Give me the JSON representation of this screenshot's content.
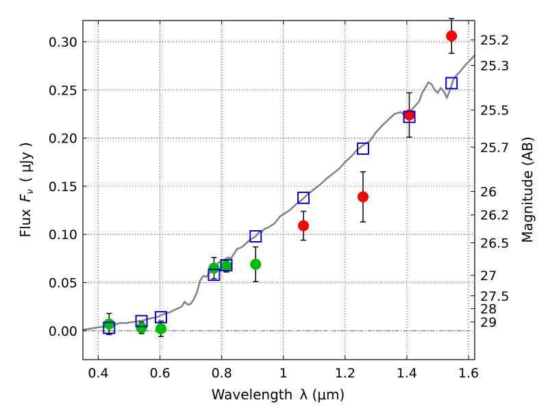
{
  "chart_data": {
    "type": "scatter",
    "xlabel_text": "Wavelength",
    "xlabel_math": "λ (μm)",
    "ylabel_text": "Flux",
    "ylabel_math": "F",
    "ylabel_math_sub": "ν",
    "ylabel_units": "( μJy )",
    "y2label": "Magnitude (AB)",
    "xlim": [
      0.35,
      1.62
    ],
    "ylim": [
      -0.03,
      0.322
    ],
    "x_ticks": [
      0.4,
      0.6,
      0.8,
      1.0,
      1.2,
      1.4,
      1.6
    ],
    "x_tick_labels": [
      "0.4",
      "0.6",
      "0.8",
      "1",
      "1.2",
      "1.4",
      "1.6"
    ],
    "y_ticks": [
      0.0,
      0.05,
      0.1,
      0.15,
      0.2,
      0.25,
      0.3
    ],
    "y_tick_labels": [
      "0.00",
      "0.05",
      "0.10",
      "0.15",
      "0.20",
      "0.25",
      "0.30"
    ],
    "mag_ticks": [
      25.2,
      25.3,
      25.5,
      25.7,
      26,
      26.2,
      26.5,
      27,
      27.5,
      28,
      29
    ],
    "mag_tick_labels": [
      "25.2",
      "25.3",
      "25.5",
      "25.7",
      "26",
      "26.2",
      "26.5",
      "27",
      "27.5",
      "28",
      "29"
    ],
    "grid": true,
    "zero_line": 0.0,
    "colors": {
      "model": "#808080",
      "green": "#00bb00",
      "red": "#ff0000",
      "square": "#0000dd",
      "errorbar": "#000000"
    },
    "model_spectrum": [
      [
        0.35,
        0.001
      ],
      [
        0.37,
        0.002
      ],
      [
        0.39,
        0.003
      ],
      [
        0.41,
        0.004
      ],
      [
        0.43,
        0.005
      ],
      [
        0.45,
        0.006
      ],
      [
        0.47,
        0.008
      ],
      [
        0.49,
        0.008
      ],
      [
        0.51,
        0.009
      ],
      [
        0.53,
        0.01
      ],
      [
        0.55,
        0.011
      ],
      [
        0.57,
        0.013
      ],
      [
        0.59,
        0.014
      ],
      [
        0.61,
        0.017
      ],
      [
        0.63,
        0.019
      ],
      [
        0.65,
        0.022
      ],
      [
        0.67,
        0.025
      ],
      [
        0.68,
        0.03
      ],
      [
        0.69,
        0.027
      ],
      [
        0.7,
        0.028
      ],
      [
        0.71,
        0.033
      ],
      [
        0.72,
        0.04
      ],
      [
        0.73,
        0.052
      ],
      [
        0.74,
        0.057
      ],
      [
        0.75,
        0.056
      ],
      [
        0.76,
        0.06
      ],
      [
        0.77,
        0.062
      ],
      [
        0.78,
        0.066
      ],
      [
        0.79,
        0.071
      ],
      [
        0.8,
        0.072
      ],
      [
        0.81,
        0.074
      ],
      [
        0.82,
        0.076
      ],
      [
        0.83,
        0.075
      ],
      [
        0.84,
        0.08
      ],
      [
        0.85,
        0.085
      ],
      [
        0.86,
        0.086
      ],
      [
        0.87,
        0.088
      ],
      [
        0.88,
        0.091
      ],
      [
        0.89,
        0.094
      ],
      [
        0.9,
        0.096
      ],
      [
        0.91,
        0.098
      ],
      [
        0.92,
        0.102
      ],
      [
        0.93,
        0.103
      ],
      [
        0.94,
        0.106
      ],
      [
        0.95,
        0.107
      ],
      [
        0.96,
        0.109
      ],
      [
        0.97,
        0.111
      ],
      [
        0.98,
        0.115
      ],
      [
        0.99,
        0.119
      ],
      [
        1.0,
        0.121
      ],
      [
        1.02,
        0.125
      ],
      [
        1.04,
        0.131
      ],
      [
        1.06,
        0.136
      ],
      [
        1.08,
        0.142
      ],
      [
        1.1,
        0.147
      ],
      [
        1.12,
        0.152
      ],
      [
        1.14,
        0.158
      ],
      [
        1.16,
        0.163
      ],
      [
        1.18,
        0.168
      ],
      [
        1.2,
        0.175
      ],
      [
        1.22,
        0.181
      ],
      [
        1.24,
        0.188
      ],
      [
        1.26,
        0.193
      ],
      [
        1.28,
        0.197
      ],
      [
        1.3,
        0.206
      ],
      [
        1.32,
        0.213
      ],
      [
        1.34,
        0.219
      ],
      [
        1.36,
        0.225
      ],
      [
        1.38,
        0.227
      ],
      [
        1.4,
        0.222
      ],
      [
        1.42,
        0.231
      ],
      [
        1.44,
        0.238
      ],
      [
        1.45,
        0.247
      ],
      [
        1.46,
        0.252
      ],
      [
        1.47,
        0.258
      ],
      [
        1.48,
        0.256
      ],
      [
        1.49,
        0.25
      ],
      [
        1.5,
        0.247
      ],
      [
        1.51,
        0.252
      ],
      [
        1.52,
        0.248
      ],
      [
        1.53,
        0.242
      ],
      [
        1.54,
        0.25
      ],
      [
        1.55,
        0.26
      ],
      [
        1.56,
        0.265
      ],
      [
        1.57,
        0.268
      ],
      [
        1.58,
        0.272
      ],
      [
        1.59,
        0.276
      ],
      [
        1.6,
        0.279
      ],
      [
        1.62,
        0.286
      ]
    ],
    "green_points": [
      {
        "x": 0.435,
        "y": 0.007,
        "err": 0.011
      },
      {
        "x": 0.54,
        "y": 0.003,
        "err": 0.006
      },
      {
        "x": 0.603,
        "y": 0.002,
        "err": 0.008
      },
      {
        "x": 0.775,
        "y": 0.065,
        "err": 0.011
      },
      {
        "x": 0.815,
        "y": 0.067,
        "err": 0.006
      },
      {
        "x": 0.91,
        "y": 0.069,
        "err": 0.018
      }
    ],
    "red_points": [
      {
        "x": 1.065,
        "y": 0.109,
        "err": 0.015
      },
      {
        "x": 1.258,
        "y": 0.139,
        "err": 0.026
      },
      {
        "x": 1.408,
        "y": 0.224,
        "err": 0.023
      },
      {
        "x": 1.545,
        "y": 0.306,
        "err": 0.018
      }
    ],
    "model_squares": [
      {
        "x": 0.435,
        "y": 0.003
      },
      {
        "x": 0.54,
        "y": 0.01
      },
      {
        "x": 0.603,
        "y": 0.014
      },
      {
        "x": 0.775,
        "y": 0.058
      },
      {
        "x": 0.815,
        "y": 0.068
      },
      {
        "x": 0.91,
        "y": 0.098
      },
      {
        "x": 1.065,
        "y": 0.138
      },
      {
        "x": 1.258,
        "y": 0.189
      },
      {
        "x": 1.408,
        "y": 0.222
      },
      {
        "x": 1.545,
        "y": 0.257
      }
    ]
  }
}
